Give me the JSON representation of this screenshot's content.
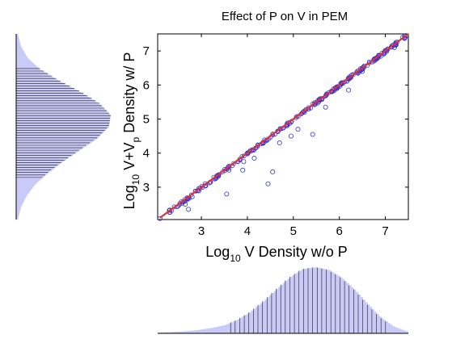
{
  "chart_data": [
    {
      "type": "scatter",
      "title": "Effect of P on V in PEM",
      "xlabel": {
        "base": "Log",
        "sub": "10",
        "rest": " V Density w/o P"
      },
      "ylabel": {
        "base": "Log",
        "sub1": "10",
        "mid": " V+V",
        "sub2": "p",
        "rest": " Density w/ P"
      },
      "xlim": [
        2.05,
        7.5
      ],
      "ylim": [
        2.05,
        7.5
      ],
      "x_ticks": [
        3,
        4,
        5,
        6,
        7
      ],
      "y_ticks": [
        3,
        4,
        5,
        6,
        7
      ],
      "grid": false,
      "colors": {
        "points": "#3333cc",
        "fit_line": "#e0303a"
      },
      "series": [
        {
          "marker": "open-circle",
          "outliers": [
            {
              "x": 2.1,
              "y": 2.08
            },
            {
              "x": 2.65,
              "y": 2.5
            },
            {
              "x": 2.72,
              "y": 2.35
            },
            {
              "x": 2.8,
              "y": 2.72
            },
            {
              "x": 3.55,
              "y": 2.8
            },
            {
              "x": 3.6,
              "y": 3.5
            },
            {
              "x": 3.9,
              "y": 3.5
            },
            {
              "x": 3.92,
              "y": 3.75
            },
            {
              "x": 4.15,
              "y": 3.85
            },
            {
              "x": 4.45,
              "y": 3.1
            },
            {
              "x": 4.55,
              "y": 3.45
            },
            {
              "x": 4.7,
              "y": 4.3
            },
            {
              "x": 4.95,
              "y": 4.5
            },
            {
              "x": 5.1,
              "y": 4.7
            },
            {
              "x": 5.42,
              "y": 4.55
            },
            {
              "x": 5.7,
              "y": 5.35
            },
            {
              "x": 5.95,
              "y": 5.9
            },
            {
              "x": 6.2,
              "y": 5.85
            },
            {
              "x": 6.5,
              "y": 6.4
            },
            {
              "x": 7.2,
              "y": 7.1
            },
            {
              "x": 7.45,
              "y": 7.45
            }
          ]
        },
        {
          "name": "",
          "type": "line",
          "x": [
            2.1,
            7.5
          ],
          "y": [
            2.1,
            7.5
          ]
        }
      ]
    },
    {
      "type": "area",
      "orientation": "horizontal",
      "axis": "y",
      "description_visible": "marginal histogram of y",
      "values_profile": [
        0.02,
        0.05,
        0.12,
        0.25,
        0.45,
        0.68,
        0.88,
        1.0,
        0.98,
        0.86,
        0.68,
        0.5,
        0.34,
        0.2,
        0.11,
        0.05,
        0.02
      ]
    },
    {
      "type": "area",
      "orientation": "vertical",
      "axis": "x",
      "values_profile": [
        0.01,
        0.02,
        0.03,
        0.05,
        0.08,
        0.12,
        0.2,
        0.32,
        0.48,
        0.66,
        0.84,
        0.97,
        1.0,
        0.96,
        0.84,
        0.66,
        0.44,
        0.24,
        0.1,
        0.03
      ]
    }
  ]
}
